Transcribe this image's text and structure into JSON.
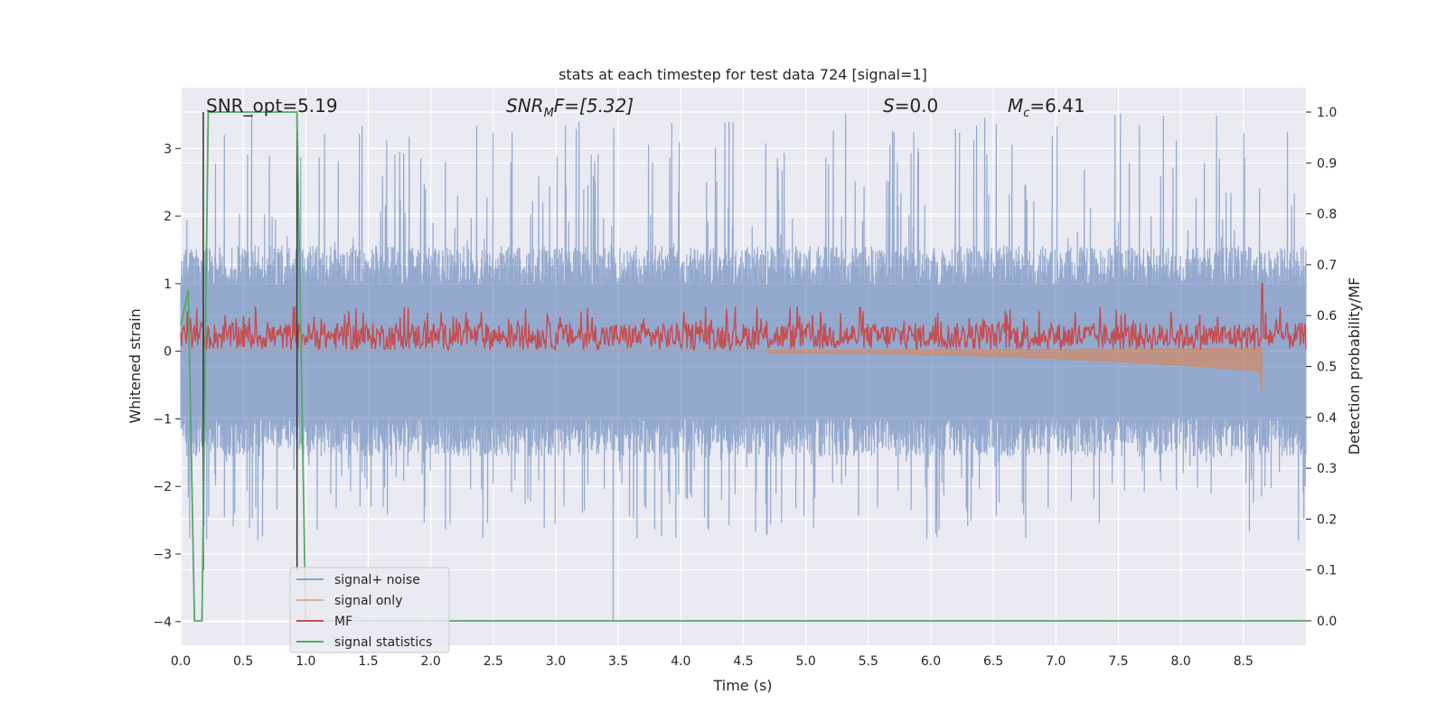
{
  "chart_data": {
    "type": "line",
    "title": "stats at each timestep for test data 724 [signal=1]",
    "xlabel": "Time (s)",
    "ylabel": "Whitened strain",
    "y2label": "Detection probability/MF",
    "xlim": [
      0,
      9
    ],
    "ylim": [
      -4.35,
      3.9
    ],
    "y2lim": [
      -0.048,
      1.048
    ],
    "xticks": [
      "0.0",
      "0.5",
      "1.0",
      "1.5",
      "2.0",
      "2.5",
      "3.0",
      "3.5",
      "4.0",
      "4.5",
      "5.0",
      "5.5",
      "6.0",
      "6.5",
      "7.0",
      "7.5",
      "8.0",
      "8.5"
    ],
    "xtick_values": [
      0,
      0.5,
      1,
      1.5,
      2,
      2.5,
      3,
      3.5,
      4,
      4.5,
      5,
      5.5,
      6,
      6.5,
      7,
      7.5,
      8,
      8.5
    ],
    "yticks": [
      "−4",
      "−3",
      "−2",
      "−1",
      "0",
      "1",
      "2",
      "3"
    ],
    "ytick_values": [
      -4,
      -3,
      -2,
      -1,
      0,
      1,
      2,
      3
    ],
    "y2ticks": [
      "0.0",
      "0.1",
      "0.2",
      "0.3",
      "0.4",
      "0.5",
      "0.6",
      "0.7",
      "0.8",
      "0.9",
      "1.0"
    ],
    "y2tick_values": [
      0,
      0.1,
      0.2,
      0.3,
      0.4,
      0.5,
      0.6,
      0.7,
      0.8,
      0.9,
      1.0
    ],
    "grid": true,
    "legend_placement": "lower-left",
    "annotations": {
      "snr_opt": "SNR_opt=5.19",
      "snr_mf_prefix": "SNR",
      "snr_mf_sub": "M",
      "snr_mf_rest": "F=[5.32]",
      "s_label": "S",
      "s_rest": "=0.0",
      "mc_label": "M",
      "mc_sub": "c",
      "mc_rest": "=6.41"
    },
    "vertical_lines_x": [
      0.18,
      0.93
    ],
    "series": [
      {
        "name": "signal+ noise",
        "color": "#4c72b0",
        "opacity": 0.55,
        "axis": "left",
        "description": "noise band",
        "x_range": [
          0,
          9
        ],
        "amplitude_typical": 1.3,
        "amplitude_max": 3.55,
        "min_value": -4.0
      },
      {
        "name": "signal only",
        "color": "#dd8452",
        "opacity": 0.6,
        "axis": "left",
        "chirp_start": 4.7,
        "chirp_end": 8.65,
        "chirp_peak_min": -0.6
      },
      {
        "name": "MF",
        "color": "#c44e52",
        "axis": "left",
        "center": 0.22,
        "band": 0.2,
        "spike_x": 8.65,
        "spike_value": 1.0
      },
      {
        "name": "signal statistics",
        "color": "#55a868",
        "axis": "right",
        "x": [
          0.0,
          0.06,
          0.11,
          0.17,
          0.22,
          0.25,
          0.93,
          1.0,
          1.1,
          9.0
        ],
        "y": [
          0.58,
          0.65,
          0.0,
          0.0,
          1.0,
          1.0,
          1.0,
          0.0,
          0.0,
          0.0
        ]
      }
    ],
    "colors": {
      "plot_bg": "#eaeaf2",
      "grid": "#ffffff",
      "vline": "#333333",
      "text": "#262626"
    }
  }
}
